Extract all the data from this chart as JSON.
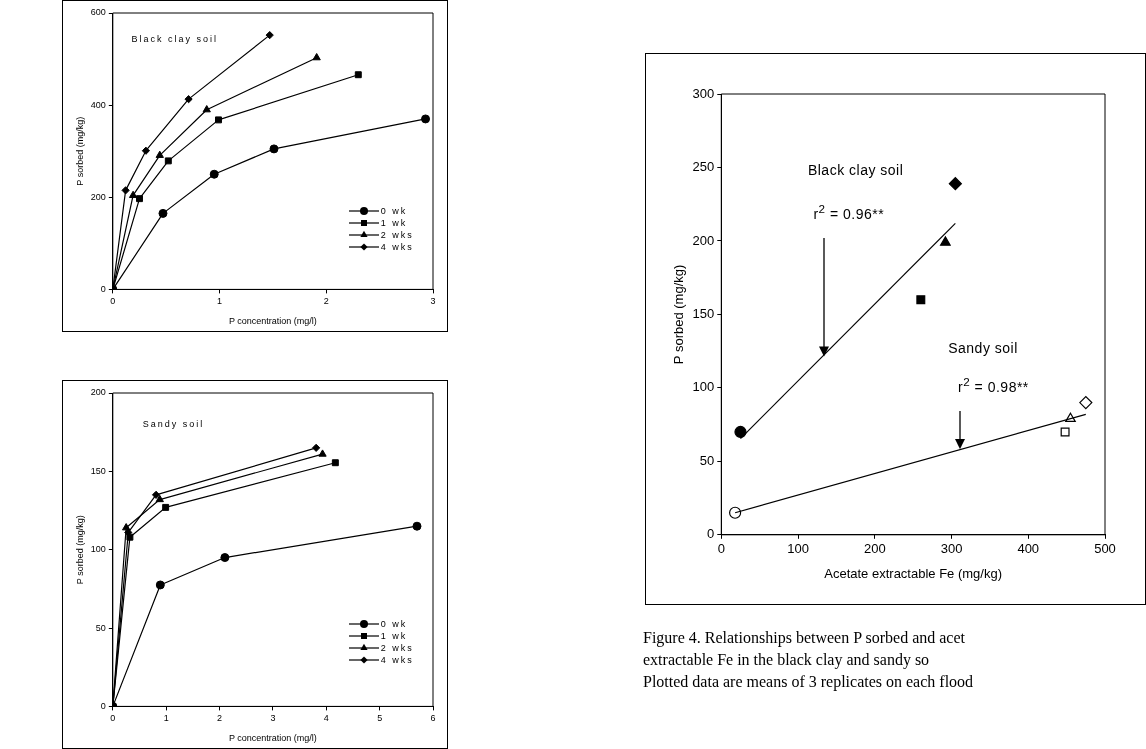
{
  "chart_data": [
    {
      "type": "line",
      "xlabel": "P concentration (mg/l)",
      "ylabel": "P sorbed (mg/kg)",
      "annotations": [
        "Black clay soil"
      ],
      "xlim": [
        0,
        3
      ],
      "xticks": [
        0,
        1,
        2,
        3
      ],
      "ylim": [
        0,
        600
      ],
      "yticks": [
        0,
        200,
        400,
        600
      ],
      "legend": "bottom right",
      "series": [
        {
          "name": "0 wk",
          "color": "#000000",
          "marker": "circle",
          "x": [
            0,
            0.47,
            0.95,
            1.51,
            2.93
          ],
          "values": [
            0,
            165,
            250,
            305,
            370
          ]
        },
        {
          "name": "1 wk",
          "color": "#000000",
          "marker": "square",
          "x": [
            0,
            0.25,
            0.52,
            0.99,
            2.3
          ],
          "values": [
            0,
            197,
            279,
            368,
            466
          ]
        },
        {
          "name": "2 wks",
          "color": "#000000",
          "marker": "triangle",
          "x": [
            0,
            0.19,
            0.44,
            0.88,
            1.91
          ],
          "values": [
            0,
            204,
            291,
            390,
            503
          ]
        },
        {
          "name": "4 wks",
          "color": "#000000",
          "marker": "diamond",
          "x": [
            0,
            0.12,
            0.31,
            0.71,
            1.47
          ],
          "values": [
            0,
            215,
            301,
            413,
            552
          ]
        }
      ]
    },
    {
      "type": "line",
      "xlabel": "P concentration (mg/l)",
      "ylabel": "P sorbed (mg/kg)",
      "annotations": [
        "Sandy soil"
      ],
      "xlim": [
        0,
        6
      ],
      "xticks": [
        0,
        1,
        2,
        3,
        4,
        5,
        6
      ],
      "ylim": [
        0,
        200
      ],
      "yticks": [
        0,
        50,
        100,
        150,
        200
      ],
      "legend": "bottom right",
      "series": [
        {
          "name": "0 wk",
          "color": "#000000",
          "marker": "circle",
          "x": [
            0,
            0.89,
            2.1,
            5.7
          ],
          "values": [
            0,
            77.5,
            95,
            115
          ]
        },
        {
          "name": "1 wk",
          "color": "#000000",
          "marker": "square",
          "x": [
            0,
            0.32,
            0.99,
            4.17
          ],
          "values": [
            0,
            108,
            127,
            155.5
          ]
        },
        {
          "name": "2 wks",
          "color": "#000000",
          "marker": "triangle",
          "x": [
            0,
            0.25,
            0.88,
            3.93
          ],
          "values": [
            0,
            114,
            132,
            161
          ]
        },
        {
          "name": "4 wks",
          "color": "#000000",
          "marker": "diamond",
          "x": [
            0,
            0.29,
            0.81,
            3.81
          ],
          "values": [
            0,
            111,
            135,
            165
          ]
        }
      ]
    },
    {
      "type": "scatter",
      "xlabel": "Acetate extractable Fe (mg/kg)",
      "ylabel": "P sorbed (mg/kg)",
      "annotations": [
        "Black clay soil",
        {
          "text": "r$^{2}$ = 0.96**",
          "x": 133,
          "y": 122
        },
        "Sandy soil",
        {
          "text": "r$^{2}$ = 0.98**",
          "x": 310,
          "y": 59
        },
        "Figure 4. Relationships between P sorbed and acet",
        "extractable Fe in the black clay and sandy so",
        "Plotted data are means of 3 replicates on each flood"
      ],
      "xlim": [
        0,
        500
      ],
      "xticks": [
        0,
        100,
        200,
        300,
        400,
        500
      ],
      "ylim": [
        0,
        300
      ],
      "yticks": [
        0,
        50,
        100,
        150,
        200,
        250,
        300
      ],
      "series": [
        {
          "color": "#000000",
          "marker": "circle",
          "x": [
            25
          ],
          "values": [
            70
          ]
        },
        {
          "color": "#000000",
          "marker": "square",
          "x": [
            260
          ],
          "values": [
            160
          ]
        },
        {
          "color": "#000000",
          "marker": "triangle",
          "x": [
            292
          ],
          "values": [
            199
          ]
        },
        {
          "color": "#000000",
          "marker": "diamond",
          "x": [
            305
          ],
          "values": [
            239
          ]
        },
        {
          "color": "#ffffff",
          "marker": "circle",
          "x": [
            18
          ],
          "values": [
            15
          ]
        },
        {
          "color": "#ffffff",
          "marker": "square",
          "x": [
            448
          ],
          "values": [
            70
          ]
        },
        {
          "color": "#ffffff",
          "marker": "triangle",
          "x": [
            455
          ],
          "values": [
            79
          ]
        },
        {
          "color": "#ffffff",
          "marker": "diamond",
          "x": [
            475
          ],
          "values": [
            90
          ]
        },
        {
          "type": "line",
          "color": "#000000",
          "marker": "none",
          "x": [
            25,
            305
          ],
          "values": [
            65.5,
            212
          ]
        },
        {
          "type": "line",
          "color": "#000000",
          "marker": "none",
          "x": [
            18,
            475
          ],
          "values": [
            15,
            82
          ]
        }
      ]
    }
  ]
}
